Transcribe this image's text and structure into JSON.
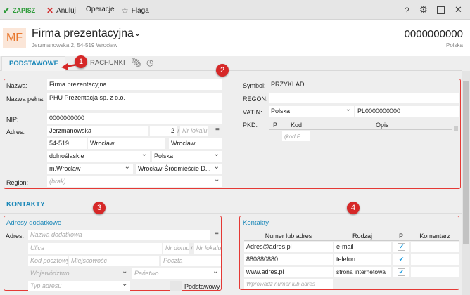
{
  "toolbar": {
    "save": "ZAPISZ",
    "cancel": "Anuluj",
    "operations": "Operacje",
    "flag": "Flaga",
    "help": "?"
  },
  "header": {
    "avatar": "MF",
    "name": "Firma prezentacyjna",
    "address": "Jerzmanowska 2, 54-519 Wrocław",
    "nip": "0000000000",
    "country": "Polska"
  },
  "tabs": [
    "PODSTAWOWE",
    "RACHUNKI"
  ],
  "badges": [
    "1",
    "2",
    "3",
    "4"
  ],
  "basic": {
    "nazwa_label": "Nazwa:",
    "nazwa": "Firma prezentacyjna",
    "pelna_label": "Nazwa pełna:",
    "pelna": "PHU Prezentacja sp. z o.o.",
    "nip_label": "NIP:",
    "nip": "0000000000",
    "adres_label": "Adres:",
    "ulica": "Jerzmanowska",
    "nr_domu": "2",
    "slash": "/",
    "nr_lokalu_ph": "Nr lokalu",
    "kod": "54-519",
    "miejscowosc": "Wrocław",
    "poczta": "Wrocław",
    "wojewodztwo": "dolnośląskie",
    "panstwo": "Polska",
    "gmina": "m.Wrocław",
    "dzielnica": "Wrocław-Śródmieście   D...",
    "region_label": "Region:",
    "region_ph": "(brak)",
    "symbol_label": "Symbol:",
    "symbol": "PRZYKLAD",
    "regon_label": "REGON:",
    "regon": "",
    "vatin_label": "VATIN:",
    "vatin_country": "Polska",
    "vatin": "PL0000000000",
    "pkd_label": "PKD:",
    "pkd_cols": [
      "P",
      "Kod",
      "Opis"
    ],
    "pkd_ph": "(kod P..."
  },
  "kontakty": {
    "title": "KONTAKTY",
    "adresy": {
      "title": "Adresy dodatkowe",
      "adres_label": "Adres:",
      "nazwa_ph": "Nazwa dodatkowa",
      "ulica_ph": "Ulica",
      "nr_domu_ph": "Nr domu",
      "slash": "/",
      "nr_lokalu_ph": "Nr lokalu",
      "kod_ph": "Kod pocztowy",
      "miejscowosc_ph": "Miejscowość",
      "poczta_ph": "Poczta",
      "wojewodztwo_ph": "Województwo",
      "panstwo_ph": "Państwo",
      "typ_ph": "Typ adresu",
      "podstawowy": "Podstawowy"
    },
    "lista": {
      "title": "Kontakty",
      "columns": [
        "Numer lub adres",
        "Rodzaj",
        "P",
        "Komentarz"
      ],
      "rows": [
        {
          "value": "Adres@adres.pl",
          "type": "e-mail",
          "primary": true,
          "comment": ""
        },
        {
          "value": "880880880",
          "type": "telefon",
          "primary": true,
          "comment": ""
        },
        {
          "value": "www.adres.pl",
          "type": "strona internetowa",
          "primary": true,
          "comment": ""
        }
      ],
      "new_ph": "Wprowadź numer lub adres"
    }
  },
  "colors": {
    "accent": "#1a87b8",
    "annotation": "#d62828",
    "save": "#2e9b3a",
    "cancel": "#d32f2f"
  }
}
